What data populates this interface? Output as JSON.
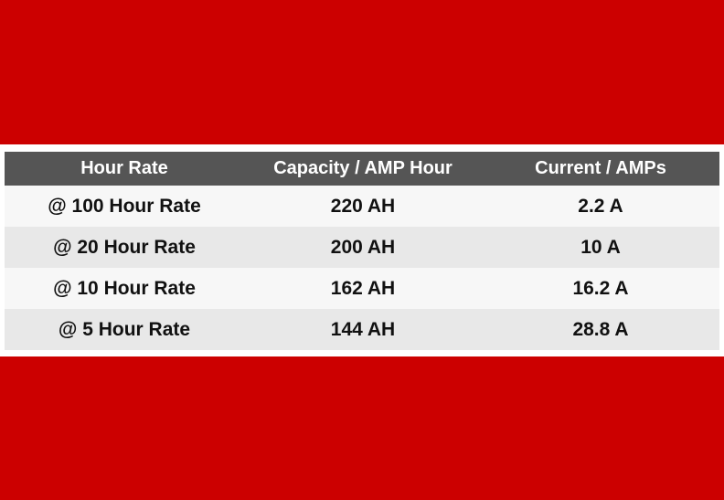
{
  "table": {
    "headers": [
      "Hour Rate",
      "Capacity / AMP Hour",
      "Current / AMPs"
    ],
    "rows": [
      [
        "@ 100 Hour Rate",
        "220 AH",
        "2.2 A"
      ],
      [
        "@ 20 Hour Rate",
        "200 AH",
        "10 A"
      ],
      [
        "@ 10 Hour Rate",
        "162 AH",
        "16.2 A"
      ],
      [
        "@ 5 Hour Rate",
        "144 AH",
        "28.8 A"
      ]
    ]
  },
  "colors": {
    "band": "#cc0000",
    "header_bg": "#555555",
    "header_text": "#ffffff",
    "row_odd": "#f7f7f7",
    "row_even": "#e8e8e8"
  }
}
